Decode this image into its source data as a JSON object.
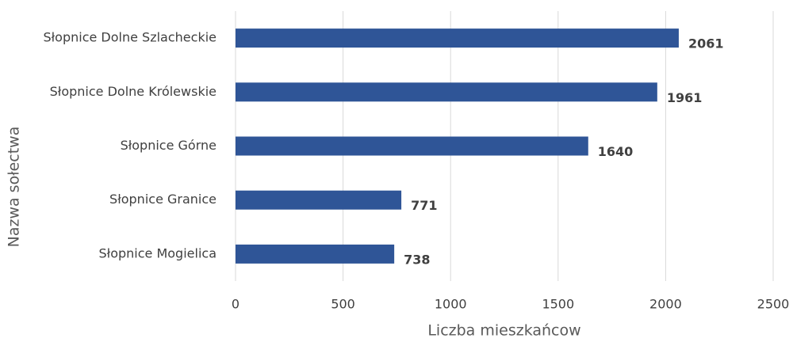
{
  "chart_data": {
    "type": "bar",
    "orientation": "horizontal",
    "x_label": "Liczba mieszkańcow",
    "y_label": "Nazwa sołectwa",
    "categories": [
      "Słopnice Dolne Szlacheckie",
      "Słopnice Dolne Królewskie",
      "Słopnice Górne",
      "Słopnice Granice",
      "Słopnice Mogielica"
    ],
    "values": [
      2061,
      1961,
      1640,
      771,
      738
    ],
    "color": "#2f5597",
    "xlim": [
      0,
      2500
    ],
    "xticks": [
      0,
      500,
      1000,
      1500,
      2000,
      2500
    ],
    "grid": true
  }
}
